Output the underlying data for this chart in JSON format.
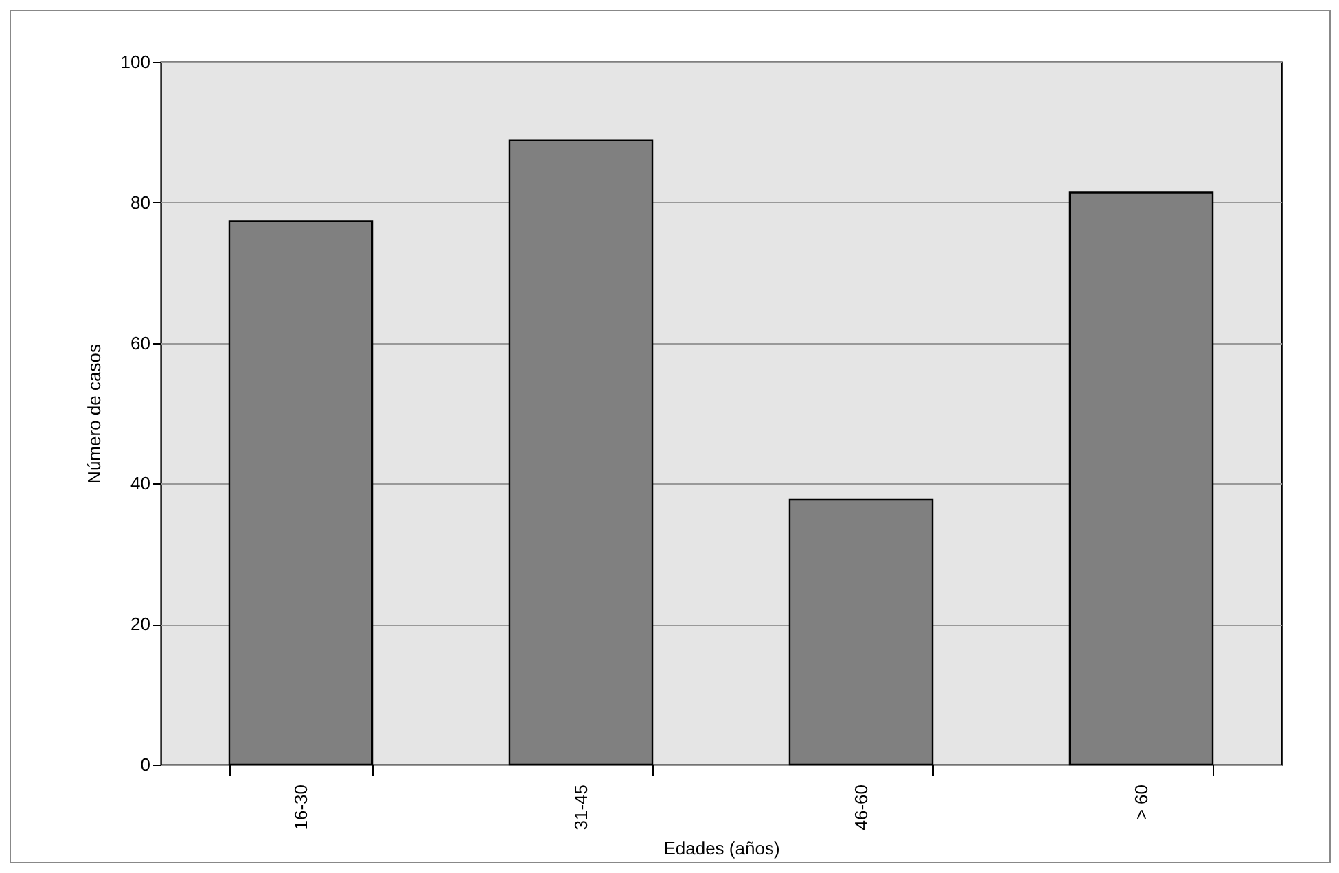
{
  "chart_data": {
    "type": "bar",
    "xlabel": "Edades (años)",
    "ylabel": "Número de casos",
    "categories": [
      "16-30",
      "31-45",
      "46-60",
      "> 60"
    ],
    "values": [
      77.3,
      88.8,
      37.7,
      81.4
    ],
    "color": "#808080",
    "ylim": [
      0,
      100
    ],
    "yticks": [
      0,
      20,
      40,
      60,
      80,
      100
    ],
    "grid": "y"
  }
}
